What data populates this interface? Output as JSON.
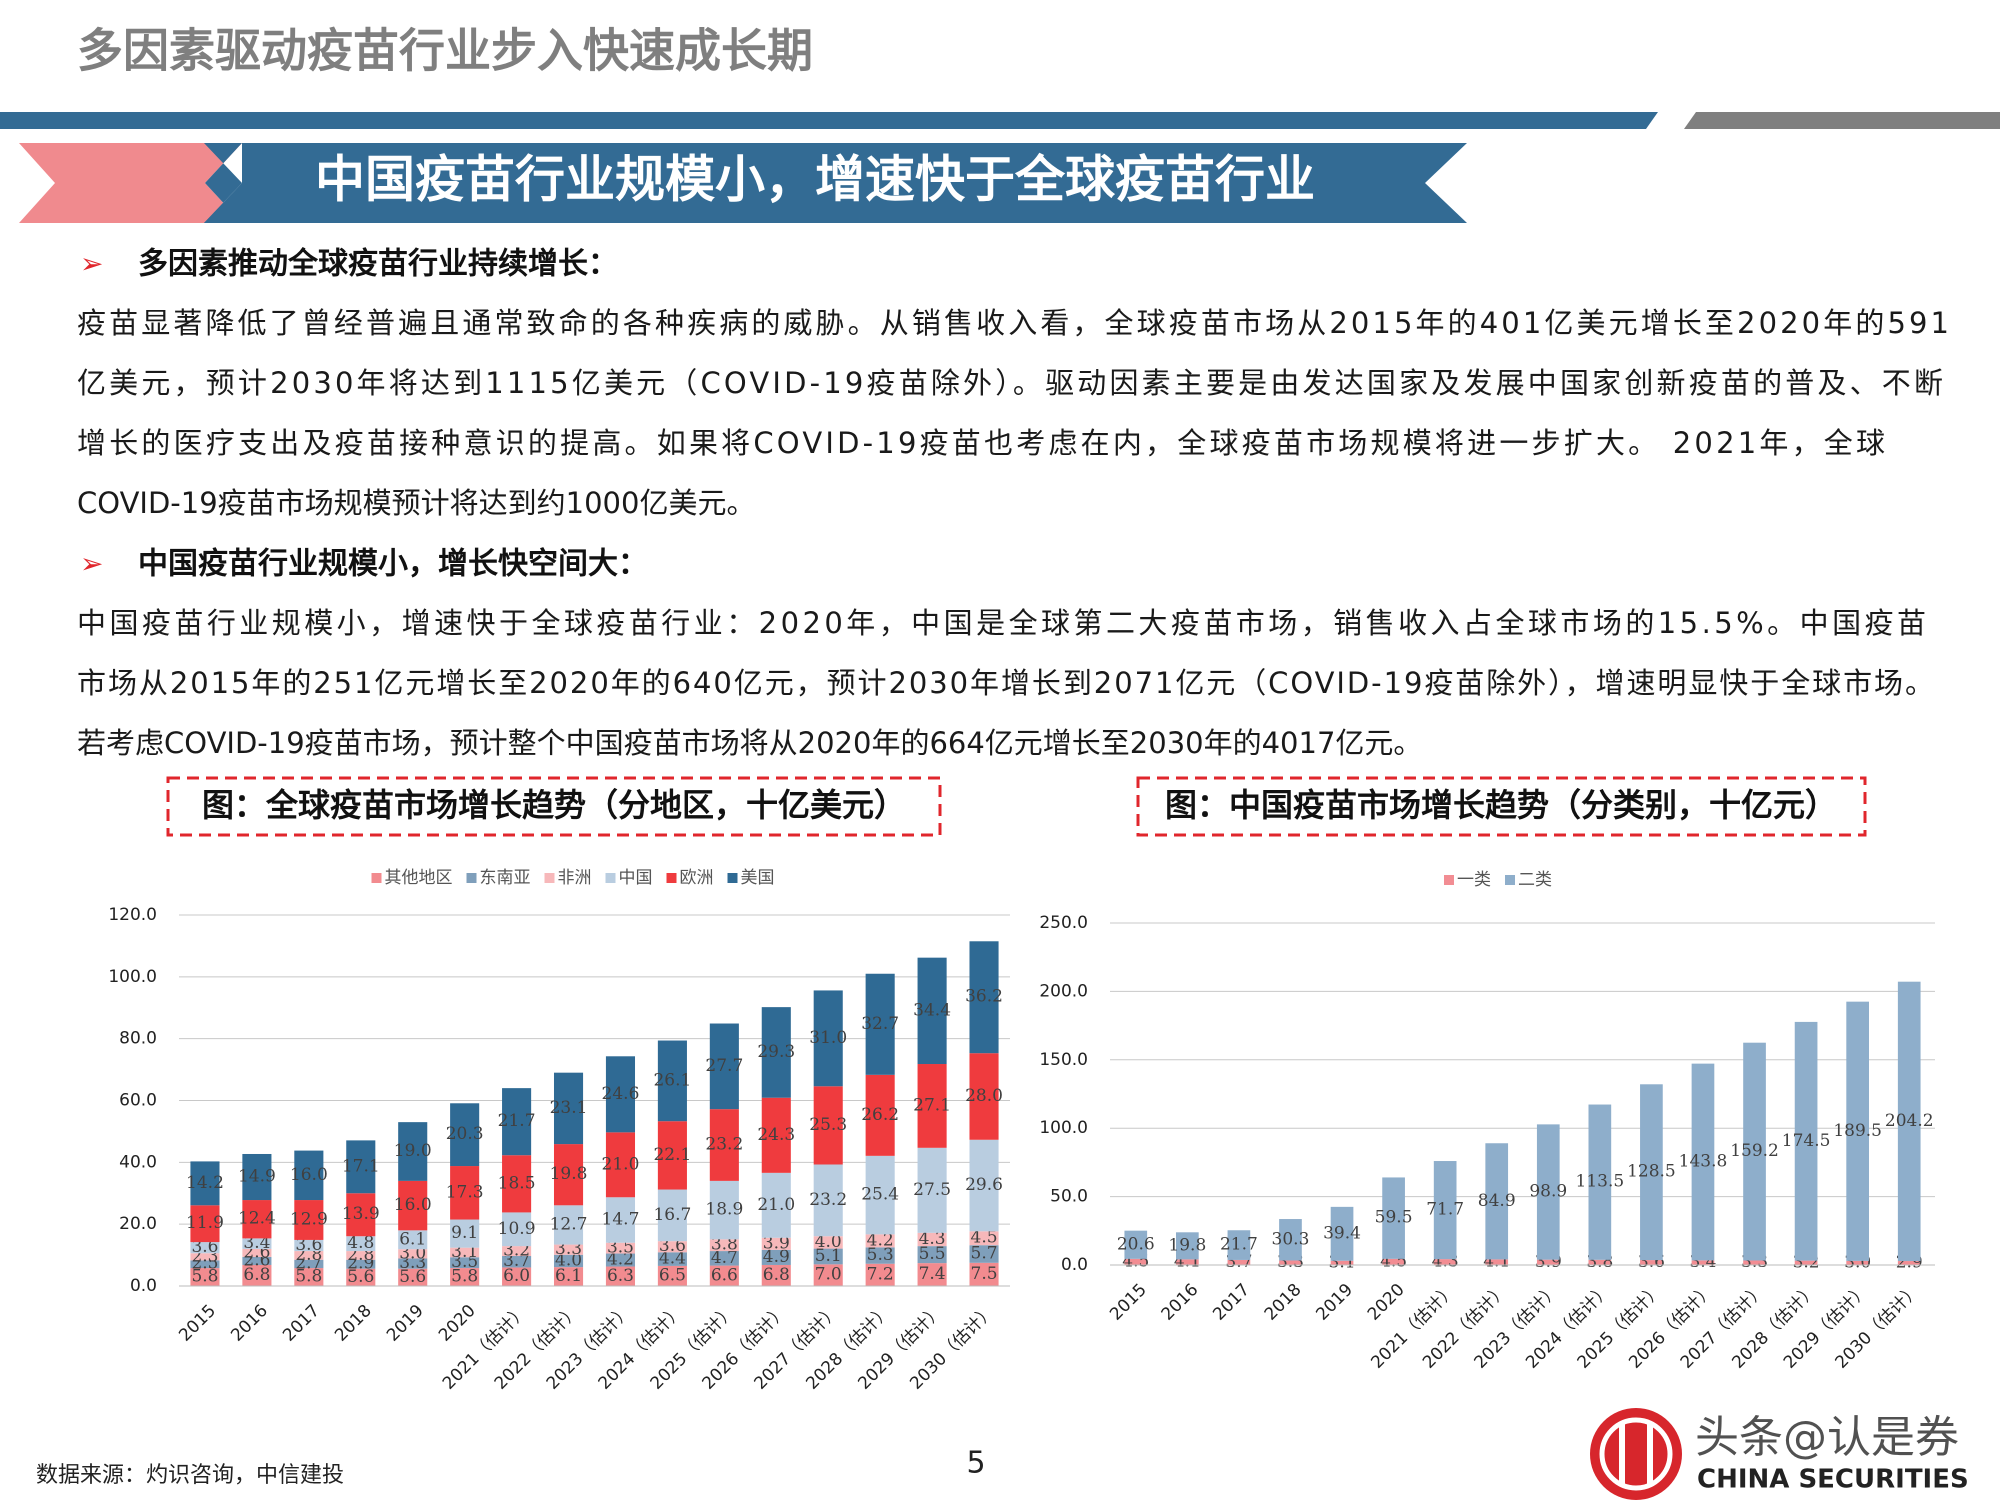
{
  "header": {
    "title": "多因素驱动疫苗行业步入快速成长期"
  },
  "banner": "中国疫苗行业规模小，增速快于全球疫苗行业",
  "sections": [
    {
      "heading": "多因素推动全球疫苗行业持续增长：",
      "lines": [
        "疫苗显著降低了曾经普遍且通常致命的各种疾病的威胁。从销售收入看，全球疫苗市场从2015年的401亿美元增长至2020年的591",
        "亿美元，预计2030年将达到1115亿美元（COVID-19疫苗除外）。驱动因素主要是由发达国家及发展中国家创新疫苗的普及、不断",
        "增长的医疗支出及疫苗接种意识的提高。如果将COVID-19疫苗也考虑在内，全球疫苗市场规模将进一步扩大。 2021年，全球",
        "COVID-19疫苗市场规模预计将达到约1000亿美元。"
      ]
    },
    {
      "heading": "中国疫苗行业规模小，增长快空间大：",
      "lines": [
        "中国疫苗行业规模小，增速快于全球疫苗行业：2020年，中国是全球第二大疫苗市场，销售收入占全球市场的15.5%。中国疫苗",
        "市场从2015年的251亿元增长至2020年的640亿元，预计2030年增长到2071亿元（COVID-19疫苗除外），增速明显快于全球市场。",
        "若考虑COVID-19疫苗市场，预计整个中国疫苗市场将从2020年的664亿元增长至2030年的4017亿元。"
      ]
    }
  ],
  "chart_data": [
    {
      "type": "bar",
      "stacked": true,
      "title": "图：全球疫苗市场增长趋势（分地区，十亿美元）",
      "legend": "top",
      "grid": true,
      "categories": [
        "2015",
        "2016",
        "2017",
        "2018",
        "2019",
        "2020",
        "2021（估计）",
        "2022（估计）",
        "2023（估计）",
        "2024（估计）",
        "2025（估计）",
        "2026（估计）",
        "2027（估计）",
        "2028（估计）",
        "2029（估计）",
        "2030（估计）"
      ],
      "ylim": [
        0,
        120
      ],
      "yticks": [
        {
          "value": 0,
          "label": "0.0"
        },
        {
          "value": 20,
          "label": "20.0"
        },
        {
          "value": 40,
          "label": "40.0"
        },
        {
          "value": 60,
          "label": "60.0"
        },
        {
          "value": 80,
          "label": "80.0"
        },
        {
          "value": 100,
          "label": "100.0"
        },
        {
          "value": 120,
          "label": "120.0"
        }
      ],
      "series": [
        {
          "name": "其他地区",
          "color": "#f28b8f",
          "values": [
            5.8,
            6.8,
            5.8,
            5.6,
            5.6,
            5.8,
            6.0,
            6.1,
            6.3,
            6.5,
            6.6,
            6.8,
            7.0,
            7.2,
            7.4,
            7.5
          ],
          "value_labels": [
            "5.8",
            "6.8",
            "5.8",
            "5.6",
            "5.6",
            "5.8",
            "6.0",
            "6.1",
            "6.3",
            "6.5",
            "6.6",
            "6.8",
            "7.0",
            "7.2",
            "7.4",
            "7.5"
          ]
        },
        {
          "name": "东南亚",
          "color": "#7f9fbb",
          "values": [
            2.5,
            2.6,
            2.7,
            2.9,
            3.3,
            3.5,
            3.7,
            4.0,
            4.2,
            4.4,
            4.7,
            4.9,
            5.1,
            5.3,
            5.5,
            5.7
          ],
          "value_labels": [
            "2.5",
            "2.6",
            "2.7",
            "2.9",
            "3.3",
            "3.5",
            "3.7",
            "4.0",
            "4.2",
            "4.4",
            "4.7",
            "4.9",
            "5.1",
            "5.3",
            "5.5",
            "5.7"
          ]
        },
        {
          "name": "非洲",
          "color": "#f7b8ba",
          "values": [
            2.3,
            2.6,
            2.8,
            2.8,
            3.0,
            3.1,
            3.2,
            3.3,
            3.5,
            3.6,
            3.8,
            3.9,
            4.0,
            4.2,
            4.3,
            4.5
          ],
          "value_labels": [
            "2.3",
            "2.6",
            "2.8",
            "2.8",
            "3.0",
            "3.1",
            "3.2",
            "3.3",
            "3.5",
            "3.6",
            "3.8",
            "3.9",
            "4.0",
            "4.2",
            "4.3",
            "4.5"
          ]
        },
        {
          "name": "中国",
          "color": "#b9cde0",
          "values": [
            3.6,
            3.4,
            3.6,
            4.8,
            6.1,
            9.1,
            10.9,
            12.7,
            14.7,
            16.7,
            18.9,
            21.0,
            23.2,
            25.4,
            27.5,
            29.6
          ],
          "value_labels": [
            "3.6",
            "3.4",
            "3.6",
            "4.8",
            "6.1",
            "9.1",
            "10.9",
            "12.7",
            "14.7",
            "16.7",
            "18.9",
            "21.0",
            "23.2",
            "25.4",
            "27.5",
            "29.6"
          ]
        },
        {
          "name": "欧洲",
          "color": "#ef3b3e",
          "values": [
            11.9,
            12.4,
            12.9,
            13.9,
            16.0,
            17.3,
            18.5,
            19.8,
            21.0,
            22.1,
            23.2,
            24.3,
            25.3,
            26.2,
            27.1,
            28.0
          ],
          "value_labels": [
            "11.9",
            "12.4",
            "12.9",
            "13.9",
            "16.0",
            "17.3",
            "18.5",
            "19.8",
            "21.0",
            "22.1",
            "23.2",
            "24.3",
            "25.3",
            "26.2",
            "27.1",
            "28.0"
          ]
        },
        {
          "name": "美国",
          "color": "#2f6a94",
          "values": [
            14.2,
            14.9,
            16.0,
            17.1,
            19.0,
            20.3,
            21.7,
            23.1,
            24.6,
            26.1,
            27.7,
            29.3,
            31.0,
            32.7,
            34.4,
            36.2
          ],
          "value_labels": [
            "14.2",
            "14.9",
            "16.0",
            "17.1",
            "19.0",
            "20.3",
            "21.7",
            "23.1",
            "24.6",
            "26.1",
            "27.7",
            "29.3",
            "31.0",
            "32.7",
            "34.4",
            "36.2"
          ]
        }
      ]
    },
    {
      "type": "bar",
      "stacked": true,
      "title": "图：中国疫苗市场增长趋势（分类别，十亿元）",
      "legend": "top",
      "grid": true,
      "categories": [
        "2015",
        "2016",
        "2017",
        "2018",
        "2019",
        "2020",
        "2021（估计）",
        "2022（估计）",
        "2023（估计）",
        "2024（估计）",
        "2025（估计）",
        "2026（估计）",
        "2027（估计）",
        "2028（估计）",
        "2029（估计）",
        "2030（估计）"
      ],
      "ylim": [
        0,
        250
      ],
      "yticks": [
        {
          "value": 0,
          "label": "0.0"
        },
        {
          "value": 50,
          "label": "50.0"
        },
        {
          "value": 100,
          "label": "100.0"
        },
        {
          "value": 150,
          "label": "150.0"
        },
        {
          "value": 200,
          "label": "200.0"
        },
        {
          "value": 250,
          "label": "250.0"
        }
      ],
      "series": [
        {
          "name": "一类",
          "color": "#f28d93",
          "values": [
            4.5,
            4.1,
            3.7,
            3.3,
            3.1,
            4.5,
            4.3,
            4.1,
            3.9,
            3.8,
            3.6,
            3.4,
            3.3,
            3.2,
            3.0,
            2.9
          ],
          "value_labels": [
            "4.5",
            "4.1",
            "3.7",
            "3.3",
            "3.1",
            "4.5",
            "4.3",
            "4.1",
            "3.9",
            "3.8",
            "3.6",
            "3.4",
            "3.3",
            "3.2",
            "3.0",
            "2.9"
          ]
        },
        {
          "name": "二类",
          "color": "#8eaecb",
          "values": [
            20.6,
            19.8,
            21.7,
            30.3,
            39.4,
            59.5,
            71.7,
            84.9,
            98.9,
            113.5,
            128.5,
            143.8,
            159.2,
            174.5,
            189.5,
            204.2
          ],
          "value_labels": [
            "20.6",
            "19.8",
            "21.7",
            "30.3",
            "39.4",
            "59.5",
            "71.7",
            "84.9",
            "98.9",
            "113.5",
            "128.5",
            "143.8",
            "159.2",
            "174.5",
            "189.5",
            "204.2"
          ]
        }
      ]
    }
  ],
  "footer": {
    "source": "数据来源：灼识咨询，中信建投",
    "page": "5",
    "logo": "CHINA SECURITIES",
    "watermark": "头条@认是券"
  }
}
